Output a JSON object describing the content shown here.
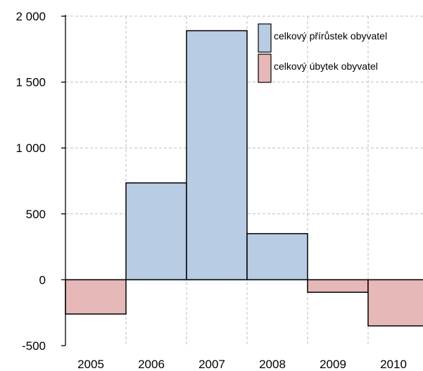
{
  "chart_data": {
    "type": "bar",
    "title": "",
    "xlabel": "",
    "ylabel": "",
    "categories": [
      "2005",
      "2006",
      "2007",
      "2008",
      "2009",
      "2010"
    ],
    "values": [
      -260,
      735,
      1890,
      350,
      -95,
      -350
    ],
    "ylim": [
      -500,
      2000
    ],
    "yticks": [
      -500,
      0,
      500,
      1000,
      1500,
      2000
    ],
    "ytick_labels": [
      "-500",
      "0",
      "500",
      "1 000",
      "1 500",
      "2 000"
    ],
    "grid": true,
    "legend_position": "top-right",
    "legend": [
      {
        "label": "celkový přírůstek obyvatel",
        "color": "#b8cce4",
        "sign": "positive"
      },
      {
        "label": "celkový úbytek obyvatel",
        "color": "#e6b9b8",
        "sign": "negative"
      }
    ]
  }
}
